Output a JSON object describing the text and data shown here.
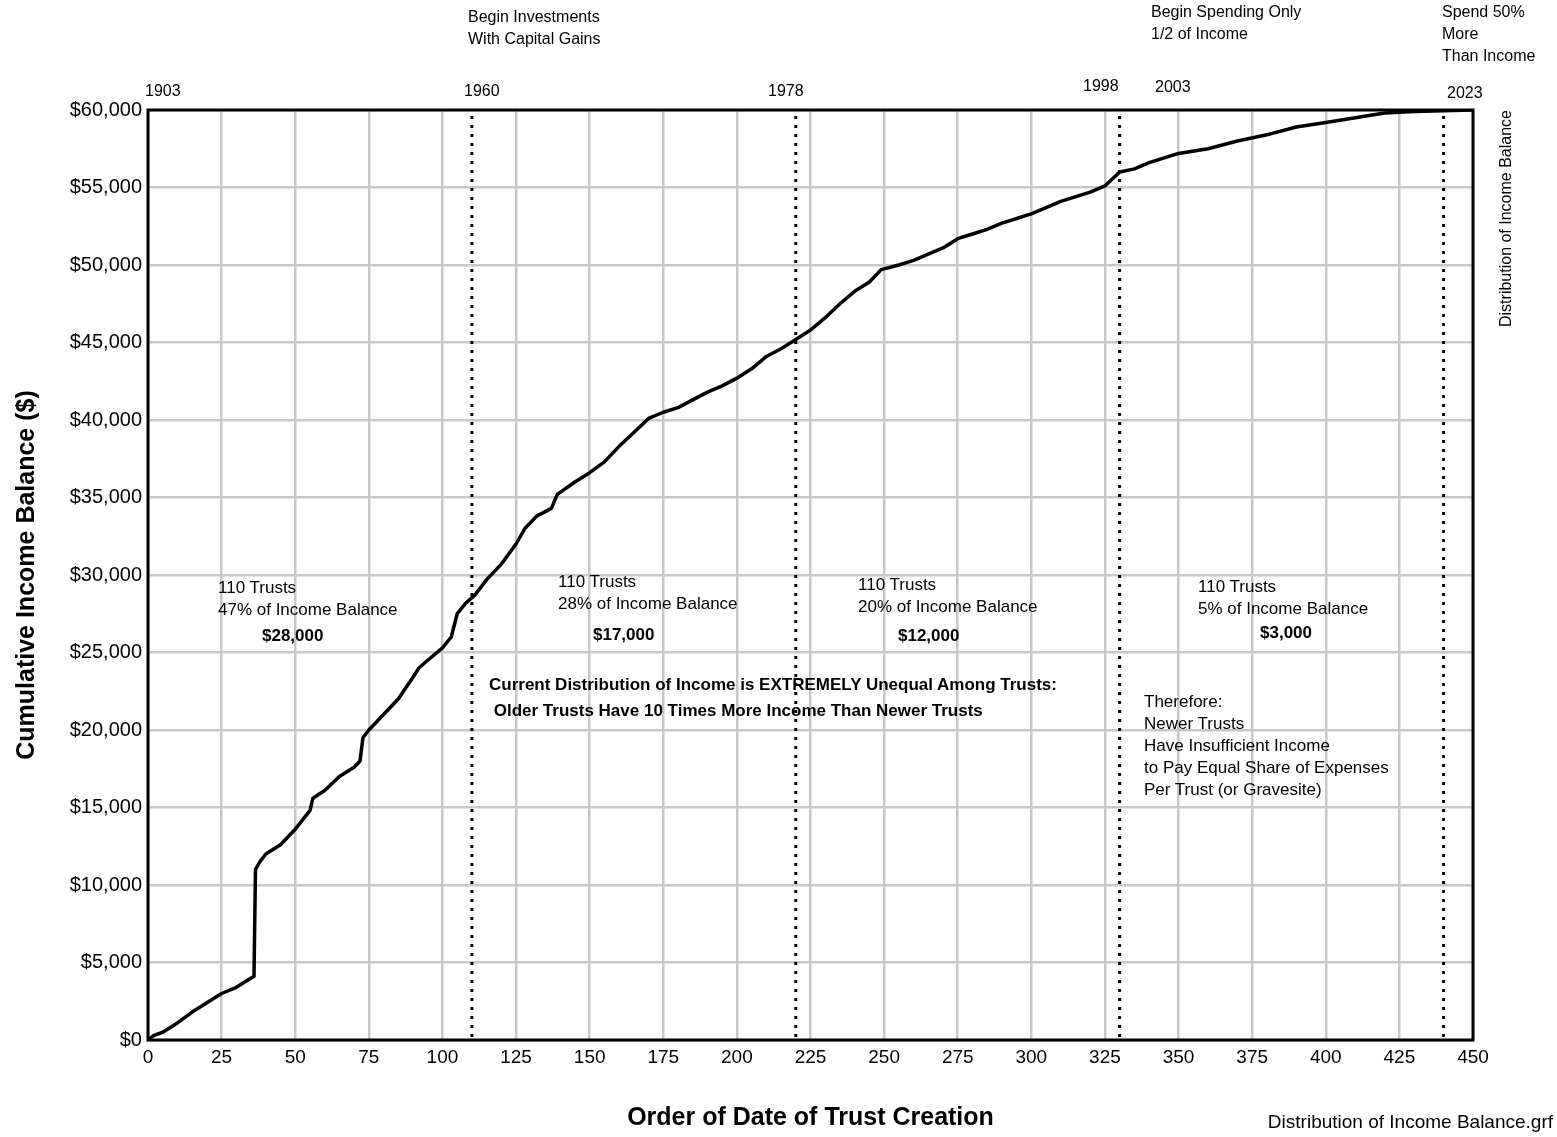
{
  "chart_data": {
    "type": "line",
    "title": "Distribution of Income Balance",
    "xlabel": "Order of Date of Trust Creation",
    "ylabel": "Cumulative Income Balance ($)",
    "x": [
      0,
      2,
      5,
      10,
      15,
      20,
      25,
      30,
      35,
      36,
      36.5,
      38,
      40,
      45,
      50,
      55,
      56,
      60,
      65,
      70,
      72,
      73,
      75,
      80,
      85,
      90,
      92,
      95,
      100,
      103,
      105,
      108,
      111,
      115,
      120,
      125,
      128,
      132,
      137,
      139,
      145,
      150,
      155,
      160,
      165,
      170,
      175,
      180,
      185,
      190,
      195,
      200,
      205,
      210,
      215,
      220,
      225,
      230,
      235,
      240,
      245,
      249,
      255,
      260,
      265,
      270,
      275,
      280,
      285,
      290,
      300,
      310,
      320,
      325,
      330,
      335,
      340,
      350,
      360,
      370,
      380,
      390,
      400,
      410,
      420,
      430,
      450
    ],
    "series": [
      {
        "color": "#000000",
        "values": [
          0,
          300,
          500,
          1100,
          1800,
          2400,
          3000,
          3400,
          4000,
          4100,
          11000,
          11500,
          12000,
          12600,
          13600,
          14800,
          15600,
          16100,
          17000,
          17600,
          18000,
          19500,
          20000,
          21000,
          22000,
          23400,
          24000,
          24500,
          25300,
          26000,
          27500,
          28200,
          28700,
          29700,
          30700,
          32000,
          33000,
          33800,
          34300,
          35200,
          36000,
          36600,
          37300,
          38300,
          39200,
          40100,
          40500,
          40800,
          41300,
          41800,
          42200,
          42700,
          43300,
          44100,
          44600,
          45200,
          45800,
          46600,
          47500,
          48300,
          48900,
          49700,
          50000,
          50300,
          50700,
          51100,
          51700,
          52000,
          52300,
          52700,
          53300,
          54100,
          54700,
          55100,
          56000,
          56200,
          56600,
          57200,
          57500,
          58000,
          58400,
          58900,
          59200,
          59500,
          59800,
          59900,
          60000
        ]
      }
    ],
    "xlim": [
      0,
      450
    ],
    "xticks": [
      0,
      25,
      50,
      75,
      100,
      125,
      150,
      175,
      200,
      225,
      250,
      275,
      300,
      325,
      350,
      375,
      400,
      425,
      450
    ],
    "ylim": [
      0,
      60000
    ],
    "yticks": [
      {
        "value": 0,
        "label": "$0"
      },
      {
        "value": 5000,
        "label": "$5,000"
      },
      {
        "value": 10000,
        "label": "$10,000"
      },
      {
        "value": 15000,
        "label": "$15,000"
      },
      {
        "value": 20000,
        "label": "$20,000"
      },
      {
        "value": 25000,
        "label": "$25,000"
      },
      {
        "value": 30000,
        "label": "$30,000"
      },
      {
        "value": 35000,
        "label": "$35,000"
      },
      {
        "value": 40000,
        "label": "$40,000"
      },
      {
        "value": 45000,
        "label": "$45,000"
      },
      {
        "value": 50000,
        "label": "$50,000"
      },
      {
        "value": 55000,
        "label": "$55,000"
      },
      {
        "value": 60000,
        "label": "$60,000"
      }
    ],
    "ref_lines": [
      {
        "axis": "x",
        "value": 110,
        "line_style": "dotted",
        "color": "#000000"
      },
      {
        "axis": "x",
        "value": 220,
        "line_style": "dotted",
        "color": "#000000"
      },
      {
        "axis": "x",
        "value": 330,
        "line_style": "dotted",
        "color": "#000000"
      },
      {
        "axis": "x",
        "value": 440,
        "line_style": "dotted",
        "color": "#000000"
      }
    ],
    "annotations": [
      "110 Trusts\n47% of Income Balance",
      "$28,000",
      "110 Trusts\n28% of Income Balance",
      "$17,000",
      "110 Trusts\n20% of Income Balance",
      "$12,000",
      "110 Trusts\n5% of Income Balance",
      "$3,000",
      "Current Distribution of Income is EXTREMELY Unequal Among Trusts:\n Older Trusts Have 10 Times More Income Than Newer Trusts",
      "Therefore:\nNewer Trusts\nHave Insufficient Income\nto Pay Equal Share of Expenses\nPer Trust (or Gravesite)",
      "Distribution of Income Balance.grf",
      "1903",
      "1960",
      "1978",
      "1998",
      "2003",
      "2023",
      "Begin Investments\nWith Capital Gains",
      "Begin Spending Only\n1/2 of Income",
      "Spend 50%\nMore\nThan Income"
    ],
    "grid": true,
    "legend": false,
    "marker": "none",
    "line_style": "solid"
  }
}
